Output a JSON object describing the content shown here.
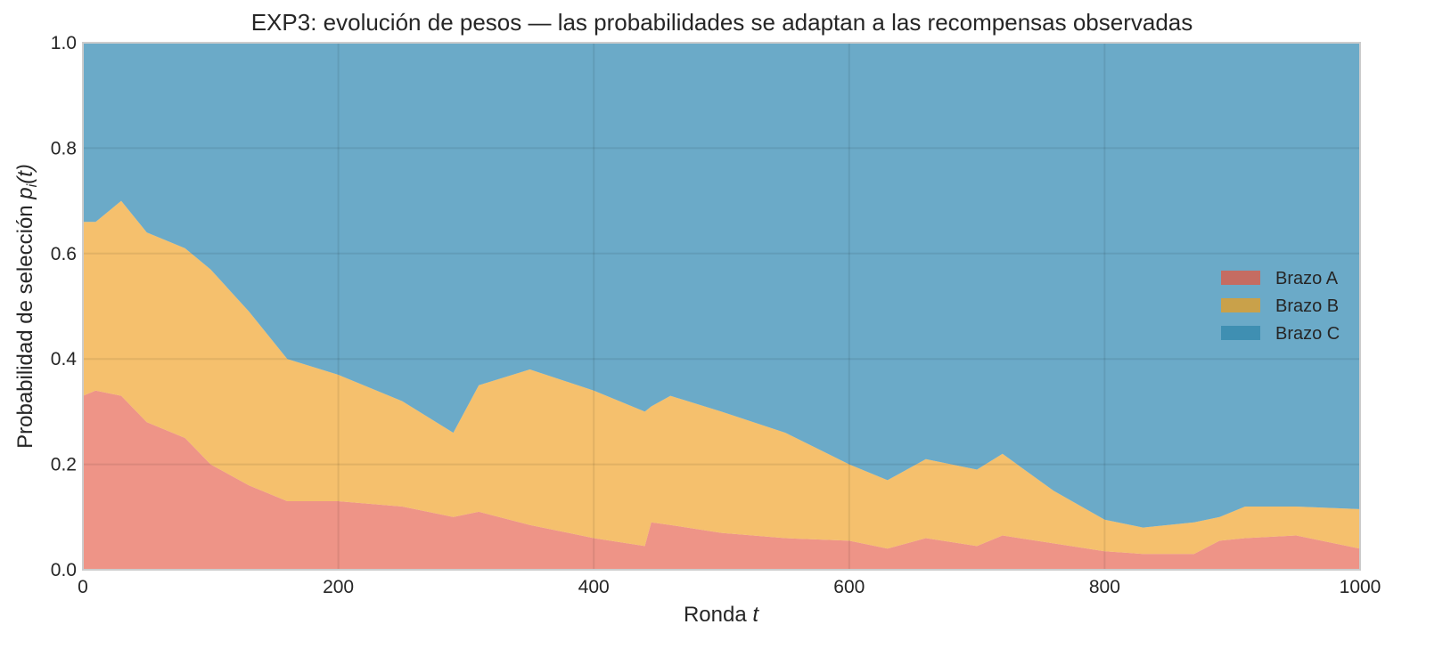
{
  "chart_data": {
    "type": "area",
    "stacked": true,
    "title": "EXP3: evolución de pesos — las probabilidades se adaptan a las recompensas observadas",
    "xlabel": "Ronda t",
    "xlabel_parts": {
      "text": "Ronda ",
      "math": "t"
    },
    "ylabel": "Probabilidad de selección p_i(t)",
    "ylabel_parts": {
      "text": "Probabilidad de selección ",
      "math_base": "p",
      "math_sub": "i",
      "math_tail": "(t)"
    },
    "xlim": [
      0,
      1000
    ],
    "ylim": [
      0.0,
      1.0
    ],
    "xticks": [
      0,
      200,
      400,
      600,
      800,
      1000
    ],
    "xtick_labels": [
      "0",
      "200",
      "400",
      "600",
      "800",
      "1000"
    ],
    "yticks": [
      0.0,
      0.2,
      0.4,
      0.6,
      0.8,
      1.0
    ],
    "ytick_labels": [
      "0.0",
      "0.2",
      "0.4",
      "0.6",
      "0.8",
      "1.0"
    ],
    "grid": true,
    "legend_position": "center right",
    "x": [
      0,
      10,
      30,
      50,
      80,
      100,
      130,
      160,
      200,
      250,
      290,
      310,
      350,
      400,
      440,
      445,
      460,
      500,
      550,
      600,
      630,
      660,
      700,
      720,
      760,
      800,
      830,
      870,
      890,
      910,
      950,
      1000
    ],
    "series": [
      {
        "name": "Brazo A",
        "color": "#e8705f",
        "values": [
          0.33,
          0.34,
          0.33,
          0.28,
          0.25,
          0.2,
          0.16,
          0.13,
          0.13,
          0.12,
          0.1,
          0.11,
          0.085,
          0.06,
          0.045,
          0.09,
          0.085,
          0.07,
          0.06,
          0.055,
          0.04,
          0.06,
          0.045,
          0.065,
          0.05,
          0.035,
          0.03,
          0.03,
          0.055,
          0.06,
          0.065,
          0.04
        ]
      },
      {
        "name": "Brazo B",
        "color": "#f2ab3c",
        "values": [
          0.33,
          0.32,
          0.37,
          0.36,
          0.36,
          0.37,
          0.33,
          0.27,
          0.24,
          0.2,
          0.16,
          0.24,
          0.295,
          0.28,
          0.255,
          0.22,
          0.245,
          0.23,
          0.2,
          0.145,
          0.13,
          0.15,
          0.145,
          0.155,
          0.1,
          0.06,
          0.05,
          0.06,
          0.045,
          0.06,
          0.055,
          0.075
        ]
      },
      {
        "name": "Brazo C",
        "color": "#3a8db5",
        "values": [
          0.34,
          0.34,
          0.3,
          0.36,
          0.39,
          0.43,
          0.51,
          0.6,
          0.63,
          0.68,
          0.74,
          0.65,
          0.62,
          0.66,
          0.7,
          0.69,
          0.67,
          0.7,
          0.74,
          0.8,
          0.83,
          0.79,
          0.81,
          0.78,
          0.85,
          0.905,
          0.92,
          0.91,
          0.9,
          0.88,
          0.88,
          0.885
        ]
      }
    ],
    "legend": [
      {
        "label": "Brazo A",
        "swatch_color": "#c56c62"
      },
      {
        "label": "Brazo B",
        "swatch_color": "#c9a14a"
      },
      {
        "label": "Brazo C",
        "swatch_color": "#3f8fb2"
      }
    ],
    "fill_alpha": 0.75,
    "plot_background": "#eaeaf2"
  }
}
